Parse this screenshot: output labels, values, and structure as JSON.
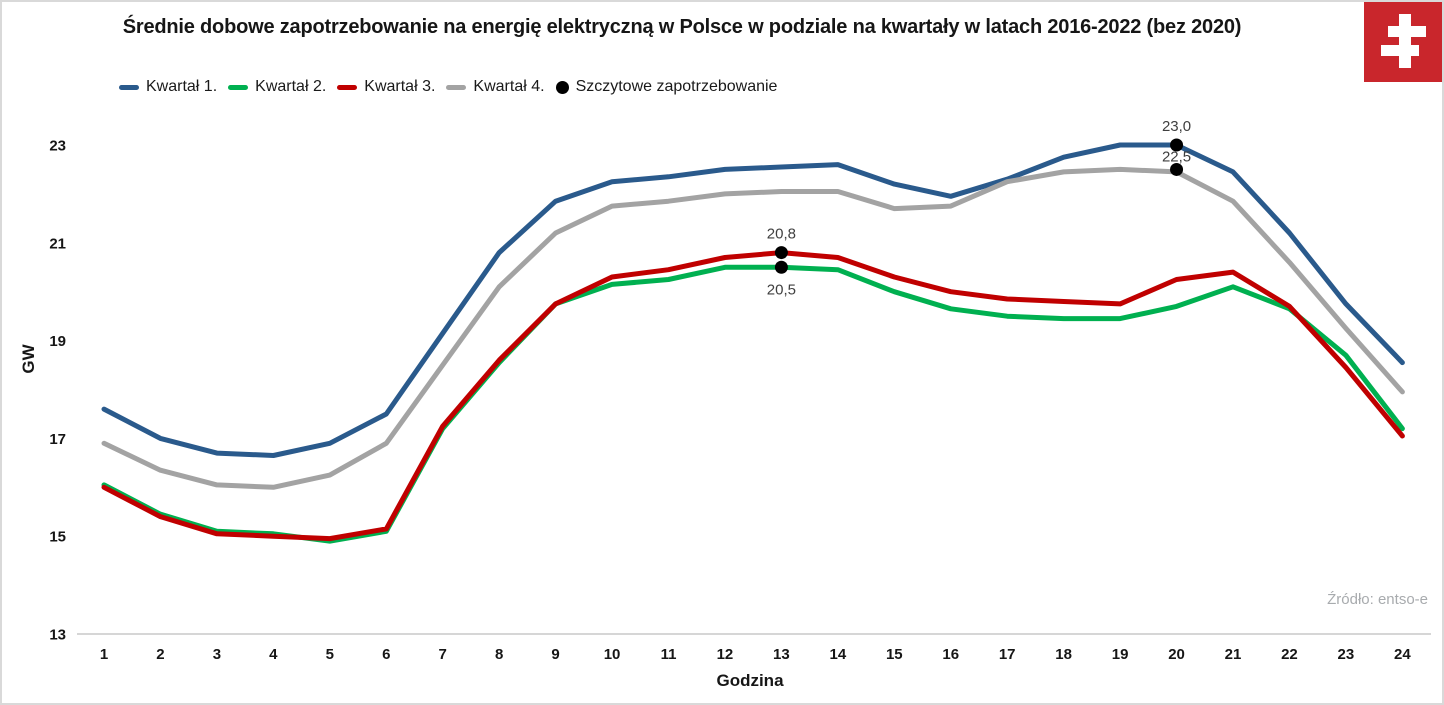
{
  "page": {
    "title": "Średnie dobowe zapotrzebowanie na energię elektryczną w Polsce w podziale na kwartały w latach 2016-2022 (bez 2020)",
    "source": "Źródło: entso-e"
  },
  "logo": {
    "name": "instrat-double-cross",
    "background": "#C9262C",
    "cross_color": "#FFFFFF"
  },
  "legend": {
    "items": [
      {
        "label": "Kwartał 1.",
        "color": "#2A5A8C",
        "marker": "line"
      },
      {
        "label": "Kwartał 2.",
        "color": "#00B050",
        "marker": "line"
      },
      {
        "label": "Kwartał 3.",
        "color": "#C00000",
        "marker": "line"
      },
      {
        "label": "Kwartał 4.",
        "color": "#A3A3A3",
        "marker": "line"
      },
      {
        "label": "Szczytowe zapotrzebowanie",
        "color": "#000000",
        "marker": "dot"
      }
    ]
  },
  "chart_data": {
    "type": "line",
    "title": "Średnie dobowe zapotrzebowanie na energię elektryczną w Polsce w podziale na kwartały w latach 2016-2022 (bez 2020)",
    "xlabel": "Godzina",
    "ylabel": "GW",
    "x": [
      1,
      2,
      3,
      4,
      5,
      6,
      7,
      8,
      9,
      10,
      11,
      12,
      13,
      14,
      15,
      16,
      17,
      18,
      19,
      20,
      21,
      22,
      23,
      24
    ],
    "y_ticks": [
      13,
      15,
      17,
      19,
      21,
      23
    ],
    "ylim": [
      13,
      23.8
    ],
    "grid": false,
    "legend_position": "top-left",
    "series": [
      {
        "name": "Kwartał 1.",
        "color": "#2A5A8C",
        "values": [
          17.6,
          17.0,
          16.7,
          16.65,
          16.9,
          17.5,
          19.15,
          20.8,
          21.85,
          22.25,
          22.35,
          22.5,
          22.55,
          22.6,
          22.2,
          21.95,
          22.3,
          22.75,
          23.0,
          23.0,
          22.45,
          21.2,
          19.75,
          18.55
        ]
      },
      {
        "name": "Kwartał 2.",
        "color": "#00B050",
        "values": [
          16.05,
          15.45,
          15.1,
          15.05,
          14.9,
          15.1,
          17.2,
          18.55,
          19.75,
          20.15,
          20.25,
          20.5,
          20.5,
          20.45,
          20.0,
          19.65,
          19.5,
          19.45,
          19.45,
          19.7,
          20.1,
          19.65,
          18.7,
          17.2
        ]
      },
      {
        "name": "Kwartał 3.",
        "color": "#C00000",
        "values": [
          16.0,
          15.4,
          15.05,
          15.0,
          14.95,
          15.15,
          17.25,
          18.6,
          19.75,
          20.3,
          20.45,
          20.7,
          20.8,
          20.7,
          20.3,
          20.0,
          19.85,
          19.8,
          19.75,
          20.25,
          20.4,
          19.7,
          18.45,
          17.05
        ]
      },
      {
        "name": "Kwartał 4.",
        "color": "#A3A3A3",
        "values": [
          16.9,
          16.35,
          16.05,
          16.0,
          16.25,
          16.9,
          18.5,
          20.1,
          21.2,
          21.75,
          21.85,
          22.0,
          22.05,
          22.05,
          21.7,
          21.75,
          22.25,
          22.45,
          22.5,
          22.45,
          21.85,
          20.6,
          19.25,
          17.95
        ]
      }
    ],
    "peaks": [
      {
        "series": "Kwartał 1.",
        "x": 20,
        "value": 23.0,
        "label": "23,0",
        "label_position": "above"
      },
      {
        "series": "Kwartał 4.",
        "x": 20,
        "value": 22.5,
        "label": "22,5",
        "label_position": "above",
        "label_dy": -8
      },
      {
        "series": "Kwartał 3.",
        "x": 13,
        "value": 20.8,
        "label": "20,8",
        "label_position": "above"
      },
      {
        "series": "Kwartał 2.",
        "x": 13,
        "value": 20.5,
        "label": "20,5",
        "label_position": "below"
      }
    ]
  }
}
